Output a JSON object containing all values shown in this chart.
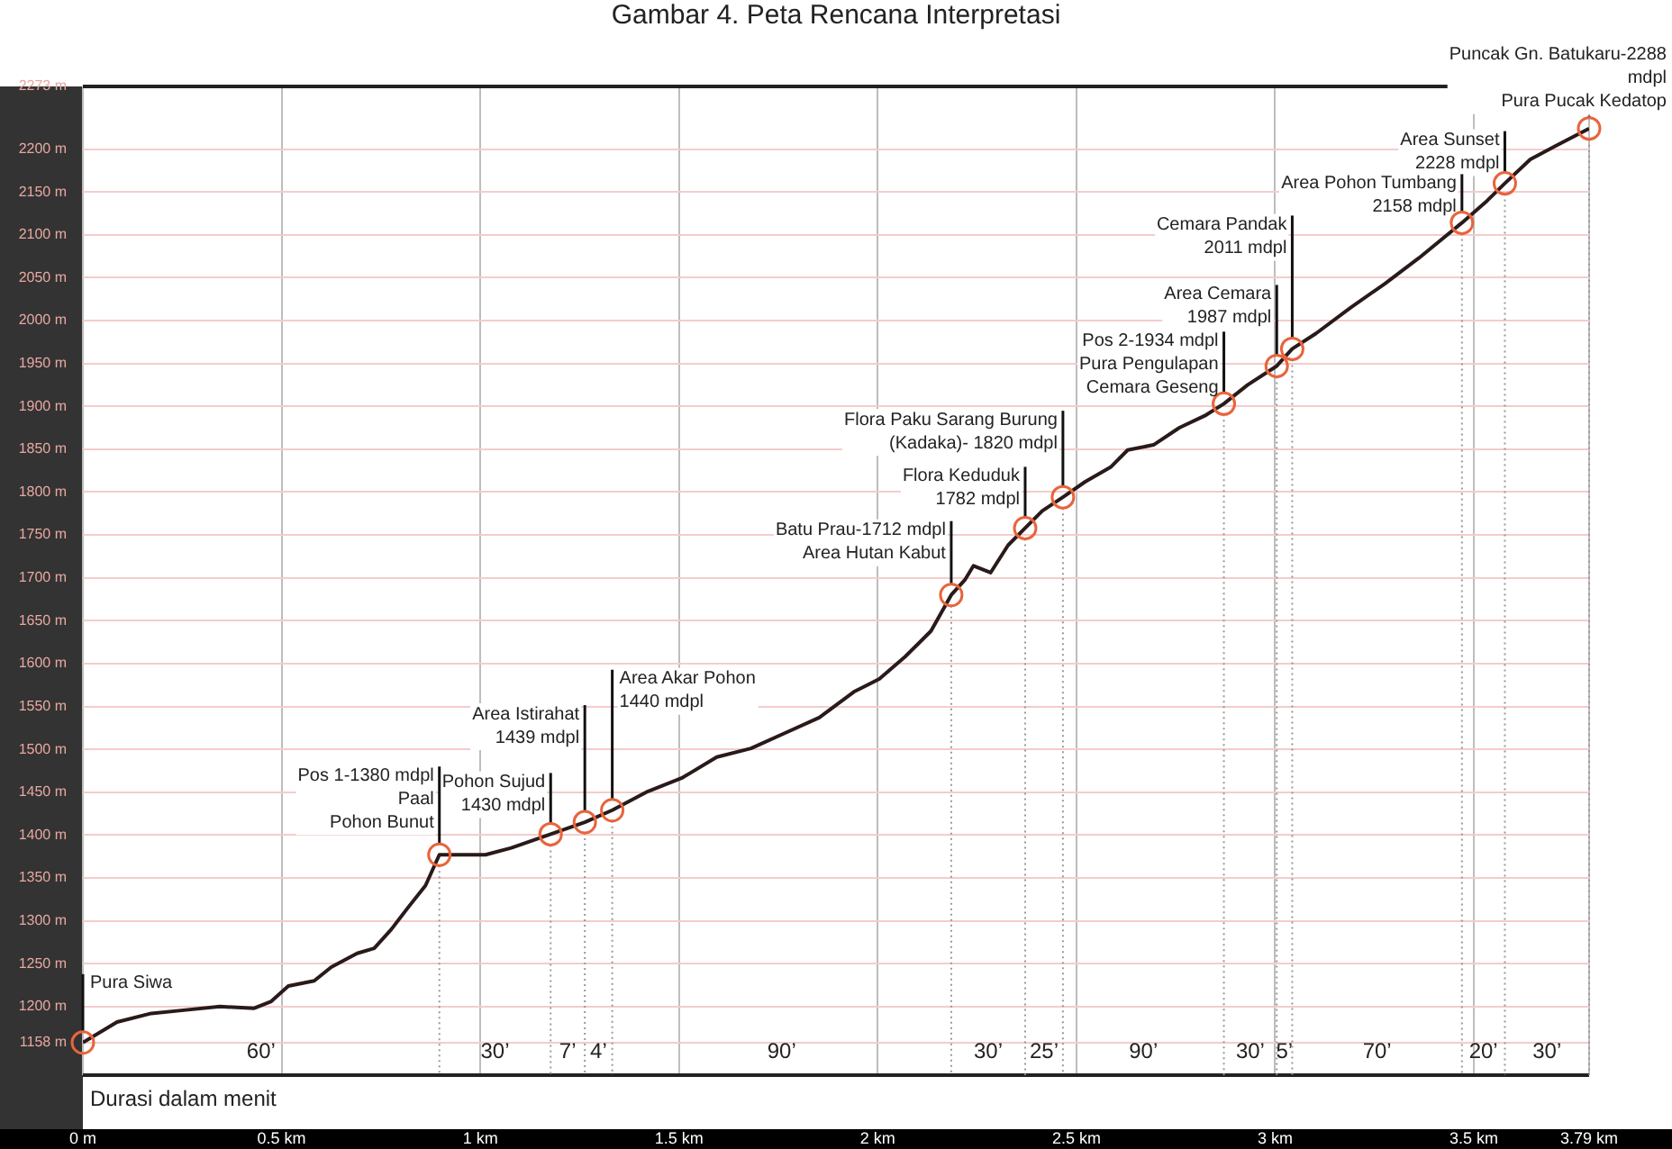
{
  "chart_data": {
    "type": "line",
    "title": "Gambar 4. Peta Rencana Interpretasi",
    "x": [
      0,
      0.086,
      0.172,
      0.259,
      0.345,
      0.431,
      0.474,
      0.517,
      0.582,
      0.625,
      0.69,
      0.733,
      0.776,
      0.819,
      0.862,
      0.897,
      0.948,
      1.013,
      1.078,
      1.177,
      1.263,
      1.332,
      1.422,
      1.509,
      1.595,
      1.681,
      1.767,
      1.853,
      1.94,
      2.004,
      2.069,
      2.134,
      2.185,
      2.22,
      2.241,
      2.284,
      2.328,
      2.371,
      2.414,
      2.466,
      2.522,
      2.586,
      2.629,
      2.694,
      2.759,
      2.823,
      2.871,
      2.931,
      3.004,
      3.043,
      3.103,
      3.19,
      3.276,
      3.362,
      3.47,
      3.534,
      3.578,
      3.642,
      3.707,
      3.79
    ],
    "series": [
      {
        "color": "#2a1a1a",
        "values": [
          1158,
          1182,
          1192,
          1196,
          1200,
          1198,
          1206,
          1224,
          1230,
          1246,
          1262,
          1268,
          1290,
          1316,
          1341,
          1377,
          1377,
          1377,
          1385,
          1401,
          1415,
          1429,
          1451,
          1467,
          1491,
          1501,
          1519,
          1537,
          1567,
          1582,
          1608,
          1638,
          1680,
          1698,
          1714,
          1706,
          1738,
          1758,
          1778,
          1794,
          1812,
          1829,
          1849,
          1855,
          1875,
          1889,
          1903,
          1925,
          1947,
          1967,
          1985,
          2015,
          2043,
          2073,
          2114,
          2140,
          2160,
          2188,
          2204,
          2224
        ]
      }
    ],
    "xlim": [
      0,
      3.79
    ],
    "xticks": [
      {
        "value": 0,
        "label": "0 m"
      },
      {
        "value": 0.5,
        "label": "0.5 km"
      },
      {
        "value": 1,
        "label": "1 km"
      },
      {
        "value": 1.5,
        "label": "1.5 km"
      },
      {
        "value": 2,
        "label": "2 km"
      },
      {
        "value": 2.5,
        "label": "2.5 km"
      },
      {
        "value": 3,
        "label": "3 km"
      },
      {
        "value": 3.5,
        "label": "3.5 km"
      },
      {
        "value": 3.79,
        "label": "3.79 km"
      }
    ],
    "ylim": [
      1120,
      2273
    ],
    "yticks": [
      {
        "value": 1158,
        "label": "1158 m"
      },
      {
        "value": 1200,
        "label": "1200 m"
      },
      {
        "value": 1250,
        "label": "1250 m"
      },
      {
        "value": 1300,
        "label": "1300 m"
      },
      {
        "value": 1350,
        "label": "1350 m"
      },
      {
        "value": 1400,
        "label": "1400 m"
      },
      {
        "value": 1450,
        "label": "1450 m"
      },
      {
        "value": 1500,
        "label": "1500 m"
      },
      {
        "value": 1550,
        "label": "1550 m"
      },
      {
        "value": 1600,
        "label": "1600 m"
      },
      {
        "value": 1650,
        "label": "1650 m"
      },
      {
        "value": 1700,
        "label": "1700 m"
      },
      {
        "value": 1750,
        "label": "1750 m"
      },
      {
        "value": 1800,
        "label": "1800 m"
      },
      {
        "value": 1850,
        "label": "1850 m"
      },
      {
        "value": 1900,
        "label": "1900 m"
      },
      {
        "value": 1950,
        "label": "1950 m"
      },
      {
        "value": 2000,
        "label": "2000 m"
      },
      {
        "value": 2050,
        "label": "2050 m"
      },
      {
        "value": 2100,
        "label": "2100 m"
      },
      {
        "value": 2150,
        "label": "2150 m"
      },
      {
        "value": 2200,
        "label": "2200 m"
      },
      {
        "value": 2273,
        "label": "2273 m"
      }
    ],
    "grid": true,
    "annotations": [
      {
        "text": "Pura Siwa",
        "x": 0,
        "y": 1158
      },
      {
        "text": "Pos 1-1380 mdpl\nPaal\nPohon Bunut",
        "x": 0.897,
        "y": 1377
      },
      {
        "text": "Pohon Sujud\n1430 mdpl",
        "x": 1.177,
        "y": 1401
      },
      {
        "text": "Area Istirahat\n1439 mdpl",
        "x": 1.263,
        "y": 1415
      },
      {
        "text": "Area Akar Pohon\n1440 mdpl",
        "x": 1.332,
        "y": 1429
      },
      {
        "text": "Batu Prau-1712 mdpl\nArea Hutan Kabut",
        "x": 2.185,
        "y": 1680
      },
      {
        "text": "Flora Keduduk\n1782 mdpl",
        "x": 2.371,
        "y": 1758
      },
      {
        "text": "Flora Paku Sarang Burung\n(Kadaka)- 1820 mdpl",
        "x": 2.466,
        "y": 1794
      },
      {
        "text": "Pos 2-1934 mdpl\nPura Pengulapan\nCemara Geseng",
        "x": 2.871,
        "y": 1903
      },
      {
        "text": "Area Cemara\n1987 mdpl",
        "x": 3.004,
        "y": 1947
      },
      {
        "text": "Cemara Pandak\n2011 mdpl",
        "x": 3.043,
        "y": 1967
      },
      {
        "text": "Area Pohon Tumbang\n2158 mdpl",
        "x": 3.47,
        "y": 2114
      },
      {
        "text": "Area Sunset\n2228 mdpl",
        "x": 3.578,
        "y": 2160
      },
      {
        "text": "Puncak Gn. Batukaru-2288\nmdpl\nPura Pucak Kedatop",
        "x": 3.79,
        "y": 2224
      },
      "60’",
      "30’",
      "7’",
      "4’",
      "90’",
      "30’",
      "25’",
      "90’",
      "30’",
      "5’",
      "70’",
      "20’",
      "30’",
      "Durasi dalam menit"
    ],
    "ref_lines": [
      {
        "axis": "x",
        "value": 0.897,
        "color": "#999999",
        "line_style": "dotted"
      },
      {
        "axis": "x",
        "value": 1.177,
        "color": "#999999",
        "line_style": "dotted"
      },
      {
        "axis": "x",
        "value": 1.263,
        "color": "#999999",
        "line_style": "dotted"
      },
      {
        "axis": "x",
        "value": 1.332,
        "color": "#999999",
        "line_style": "dotted"
      },
      {
        "axis": "x",
        "value": 2.185,
        "color": "#999999",
        "line_style": "dotted"
      },
      {
        "axis": "x",
        "value": 2.371,
        "color": "#999999",
        "line_style": "dotted"
      },
      {
        "axis": "x",
        "value": 2.466,
        "color": "#999999",
        "line_style": "dotted"
      },
      {
        "axis": "x",
        "value": 2.871,
        "color": "#999999",
        "line_style": "dotted"
      },
      {
        "axis": "x",
        "value": 3.004,
        "color": "#999999",
        "line_style": "dotted"
      },
      {
        "axis": "x",
        "value": 3.043,
        "color": "#999999",
        "line_style": "dotted"
      },
      {
        "axis": "x",
        "value": 3.47,
        "color": "#999999",
        "line_style": "dotted"
      },
      {
        "axis": "x",
        "value": 3.578,
        "color": "#999999",
        "line_style": "dotted"
      },
      {
        "axis": "x",
        "value": 3.79,
        "color": "#999999",
        "line_style": "dotted"
      }
    ]
  }
}
